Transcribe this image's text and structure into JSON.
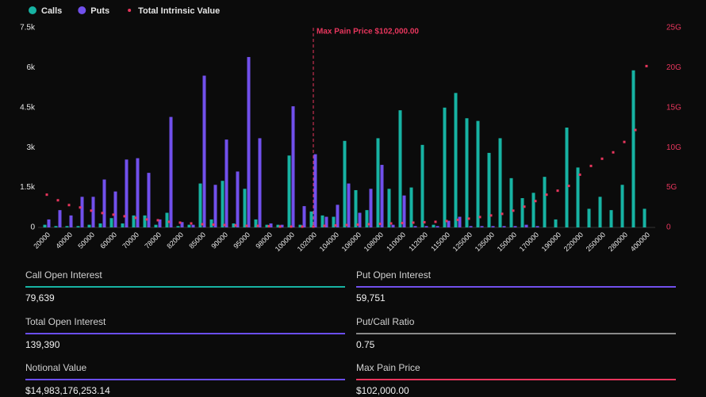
{
  "chart_data": {
    "type": "bar",
    "series": [
      {
        "name": "Calls",
        "color": "#17b3a3",
        "values": [
          100,
          50,
          50,
          50,
          100,
          150,
          350,
          150,
          450,
          450,
          100,
          550,
          50,
          100,
          1650,
          300,
          1750,
          150,
          1450,
          300,
          100,
          100,
          2700,
          100,
          600,
          450,
          400,
          3250,
          1400,
          650,
          3350,
          1450,
          4400,
          1500,
          3100,
          100,
          4500,
          5050,
          4100,
          4000,
          2800,
          3350,
          1850,
          1100,
          1300,
          1900,
          300,
          3750,
          2250,
          700,
          1150,
          650,
          1600,
          5900,
          700
        ]
      },
      {
        "name": "Puts",
        "color": "#7150ec",
        "values": [
          300,
          650,
          450,
          1150,
          1150,
          1800,
          1350,
          2550,
          2600,
          2050,
          300,
          4150,
          200,
          100,
          5700,
          1600,
          3300,
          2100,
          6400,
          3350,
          150,
          100,
          4550,
          800,
          2750,
          400,
          850,
          1650,
          550,
          1450,
          2350,
          100,
          1200,
          50,
          50,
          50,
          250,
          400,
          50,
          50,
          50,
          50,
          50,
          100,
          50,
          0,
          0,
          0,
          0,
          0,
          0,
          0,
          0,
          0,
          0
        ]
      },
      {
        "name": "Total Intrinsic Value",
        "color": "#e8365d",
        "axis": "y2",
        "values": [
          4100000000,
          3400000000,
          2800000000,
          2500000000,
          2100000000,
          1800000000,
          1600000000,
          1400000000,
          1200000000,
          1000000000,
          900000000,
          700000000,
          600000000,
          500000000,
          400000000,
          350000000,
          300000000,
          250000000,
          200000000,
          200000000,
          150000000,
          100000000,
          100000000,
          100000000,
          100000000,
          200000000,
          250000000,
          300000000,
          350000000,
          400000000,
          450000000,
          500000000,
          550000000,
          600000000,
          650000000,
          700000000,
          800000000,
          950000000,
          1100000000,
          1300000000,
          1500000000,
          1700000000,
          2100000000,
          2600000000,
          3300000000,
          4100000000,
          4600000000,
          5200000000,
          6600000000,
          7700000000,
          8600000000,
          9400000000,
          10700000000,
          12200000000,
          20200000000
        ]
      }
    ],
    "categories": [
      "20000",
      null,
      "40000",
      null,
      "50000",
      null,
      "60000",
      null,
      "70000",
      null,
      "78000",
      null,
      "82000",
      null,
      "85000",
      null,
      "90000",
      null,
      "95000",
      null,
      "98000",
      null,
      "100000",
      null,
      "102000",
      null,
      "104000",
      null,
      "106000",
      null,
      "108000",
      null,
      "110000",
      null,
      "112000",
      null,
      "115000",
      null,
      "125000",
      null,
      "135000",
      null,
      "150000",
      null,
      "170000",
      null,
      "190000",
      null,
      "220000",
      null,
      "250000",
      null,
      "280000",
      null,
      "400000"
    ],
    "ylim": [
      0,
      7500
    ],
    "yticks": [
      0,
      {
        "value": 1500,
        "label": "1.5k"
      },
      {
        "value": 3000,
        "label": "3k"
      },
      {
        "value": 4500,
        "label": "4.5k"
      },
      {
        "value": 6000,
        "label": "6k"
      },
      {
        "value": 7500,
        "label": "7.5k"
      }
    ],
    "y2lim": [
      0,
      25000000000
    ],
    "y2ticks": [
      0,
      {
        "value": 5000000000,
        "label": "5G"
      },
      {
        "value": 10000000000,
        "label": "10G"
      },
      {
        "value": 15000000000,
        "label": "15G"
      },
      {
        "value": 20000000000,
        "label": "20G"
      },
      {
        "value": 25000000000,
        "label": "25G"
      }
    ],
    "annotation": {
      "text": "Max Pain Price $102,000.00",
      "x": "102000",
      "color": "#e8365d"
    },
    "legend": "top-left"
  },
  "stats": [
    {
      "label": "Call Open Interest",
      "value": "79,639",
      "color": "#17b3a3"
    },
    {
      "label": "Put Open Interest",
      "value": "59,751",
      "color": "#7150ec"
    },
    {
      "label": "Total Open Interest",
      "value": "139,390",
      "color": "#6a4ef0"
    },
    {
      "label": "Put/Call Ratio",
      "value": "0.75",
      "color": "#8a8a8a"
    },
    {
      "label": "Notional Value",
      "value": "$14,983,176,253.14",
      "color": "#6a4ef0"
    },
    {
      "label": "Max Pain Price",
      "value": "$102,000.00",
      "color": "#e8365d"
    }
  ]
}
